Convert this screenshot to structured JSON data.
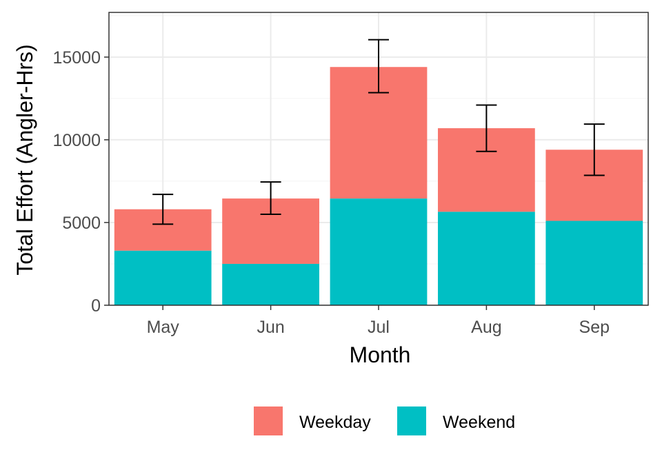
{
  "chart_data": {
    "type": "bar",
    "stacked": true,
    "categories": [
      "May",
      "Jun",
      "Jul",
      "Aug",
      "Sep"
    ],
    "series": [
      {
        "name": "Weekend",
        "values": [
          3300,
          2500,
          6450,
          5650,
          5100
        ],
        "color": "#00BFC4"
      },
      {
        "name": "Weekday",
        "values": [
          2500,
          3950,
          7950,
          5050,
          4300
        ],
        "color": "#F8766D"
      }
    ],
    "totals": [
      5800,
      6450,
      14400,
      10700,
      9400
    ],
    "error_bars": {
      "lower": [
        4900,
        5500,
        12850,
        9300,
        7850
      ],
      "upper": [
        6700,
        7450,
        16050,
        12100,
        10950
      ]
    },
    "xlabel": "Month",
    "ylabel": "Total Effort (Angler-Hrs)",
    "ylim": [
      0,
      17700
    ],
    "yticks": [
      0,
      5000,
      10000,
      15000
    ],
    "ytick_labels": [
      "0",
      "5000",
      "10000",
      "15000"
    ],
    "grid": true,
    "legend": {
      "position": "bottom",
      "entries": [
        {
          "label": "Weekday",
          "color": "#F8766D"
        },
        {
          "label": "Weekend",
          "color": "#00BFC4"
        }
      ]
    }
  }
}
